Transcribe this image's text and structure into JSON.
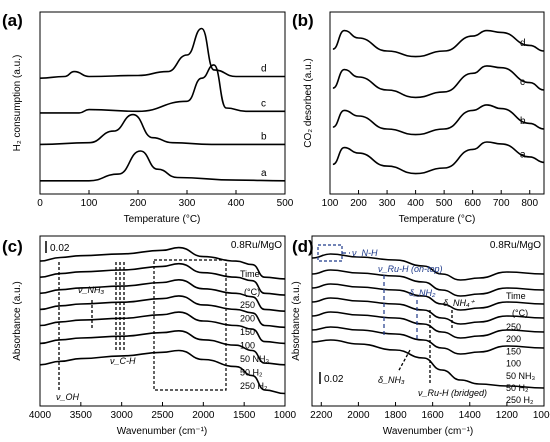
{
  "panels": [
    {
      "label": "(a)",
      "xlabel": "Temperature (°C)",
      "ylabel": "H₂ consumption (a.u.)",
      "xticks": [
        "0",
        "100",
        "200",
        "300",
        "400",
        "500"
      ],
      "curve_labels": [
        "d",
        "c",
        "b",
        "a"
      ]
    },
    {
      "label": "(b)",
      "xlabel": "Temperature (°C)",
      "ylabel": "CO₂ desorbed (a.u.)",
      "xticks": [
        "100",
        "200",
        "300",
        "400",
        "500",
        "600",
        "700",
        "800"
      ],
      "curve_labels": [
        "d",
        "c",
        "b",
        "a"
      ]
    },
    {
      "label": "(c)",
      "xlabel": "Wavenumber (cm⁻¹)",
      "ylabel": "Absorbance (a.u.)",
      "xticks": [
        "4000",
        "3500",
        "3000",
        "2500",
        "2000",
        "1500",
        "1000"
      ],
      "title": "0.8Ru/MgO",
      "scalebar": "0.02",
      "time_label": "Time",
      "unit": "(°C)",
      "series_labels": [
        "250",
        "200",
        "150",
        "100",
        "50 NH₃",
        "50 H₂",
        "250 H₂"
      ],
      "annotations": [
        "ν_NH₃",
        "ν_C-H",
        "ν_OH"
      ]
    },
    {
      "label": "(d)",
      "xlabel": "Wavenumber (cm⁻¹)",
      "ylabel": "Absorbance (a.u.)",
      "xticks": [
        "2200",
        "2000",
        "1800",
        "1600",
        "1400",
        "1200",
        "1000"
      ],
      "title": "0.8Ru/MgO",
      "scalebar": "0.02",
      "time_label": "Time",
      "unit": "(°C)",
      "series_labels": [
        "250",
        "200",
        "150",
        "100",
        "50 NH₃",
        "50 H₂",
        "250 H₂"
      ],
      "annotations": [
        "ν_N-H",
        "ν_Ru-H (on-top)",
        "δ_NH₂",
        "δ_NH₄⁺",
        "δ_NH₃",
        "ν_Ru-H (bridged)"
      ]
    }
  ],
  "chart_data": [
    {
      "type": "line",
      "title": "",
      "xlabel": "Temperature (°C)",
      "ylabel": "H₂ consumption (a.u.)",
      "xlim": [
        0,
        500
      ],
      "series": [
        {
          "name": "d",
          "x": [
            0,
            50,
            70,
            100,
            200,
            260,
            300,
            330,
            355,
            400,
            500
          ],
          "y": [
            3.2,
            3.25,
            3.4,
            3.25,
            3.28,
            3.4,
            3.9,
            4.7,
            3.45,
            3.25,
            3.25
          ]
        },
        {
          "name": "c",
          "x": [
            0,
            80,
            100,
            200,
            300,
            330,
            355,
            380,
            420,
            500
          ],
          "y": [
            2.15,
            2.15,
            2.25,
            2.2,
            2.5,
            3.2,
            3.6,
            2.3,
            2.2,
            2.2
          ]
        },
        {
          "name": "b",
          "x": [
            0,
            100,
            150,
            190,
            230,
            270,
            350,
            500
          ],
          "y": [
            1.2,
            1.25,
            1.6,
            2.1,
            1.4,
            1.25,
            1.2,
            1.2
          ]
        },
        {
          "name": "a",
          "x": [
            0,
            100,
            160,
            205,
            240,
            280,
            400,
            500
          ],
          "y": [
            0.1,
            0.1,
            0.3,
            1.0,
            0.45,
            0.2,
            0.12,
            0.1
          ]
        }
      ]
    },
    {
      "type": "line",
      "title": "",
      "xlabel": "Temperature (°C)",
      "ylabel": "CO₂ desorbed (a.u.)",
      "xlim": [
        100,
        850
      ],
      "series": [
        {
          "name": "d",
          "x": [
            110,
            150,
            200,
            300,
            400,
            500,
            600,
            650,
            700,
            800,
            850
          ],
          "y": [
            3.6,
            4.1,
            3.9,
            3.55,
            3.4,
            3.55,
            3.95,
            4.1,
            4.05,
            3.7,
            3.55
          ]
        },
        {
          "name": "c",
          "x": [
            110,
            150,
            200,
            300,
            400,
            500,
            600,
            650,
            700,
            800,
            850
          ],
          "y": [
            2.55,
            3.05,
            2.85,
            2.5,
            2.3,
            2.45,
            2.95,
            3.15,
            3.1,
            2.7,
            2.5
          ]
        },
        {
          "name": "b",
          "x": [
            110,
            150,
            200,
            300,
            400,
            500,
            600,
            650,
            700,
            800,
            850
          ],
          "y": [
            1.5,
            1.95,
            1.8,
            1.45,
            1.3,
            1.45,
            1.95,
            2.1,
            2.0,
            1.6,
            1.45
          ]
        },
        {
          "name": "a",
          "x": [
            110,
            150,
            200,
            300,
            400,
            500,
            600,
            650,
            700,
            800,
            850
          ],
          "y": [
            0.5,
            0.95,
            0.8,
            0.45,
            0.25,
            0.4,
            0.9,
            1.1,
            1.05,
            0.7,
            0.55
          ]
        }
      ]
    },
    {
      "type": "line",
      "title": "0.8Ru/MgO",
      "xlabel": "Wavenumber (cm⁻¹)",
      "ylabel": "Absorbance (a.u.)",
      "xlim": [
        4000,
        1000
      ],
      "series": [
        {
          "name": "250",
          "x": [
            4000,
            3750,
            3500,
            3000,
            2500,
            2300,
            2000,
            1600,
            1400,
            1250,
            1000
          ],
          "y": [
            7.6,
            7.8,
            7.9,
            8.0,
            8.2,
            8.35,
            7.85,
            7.6,
            7.4,
            6.7,
            6.6
          ]
        },
        {
          "name": "200",
          "x": [
            4000,
            3750,
            3500,
            3000,
            2500,
            2300,
            2000,
            1600,
            1400,
            1250,
            1000
          ],
          "y": [
            6.7,
            6.9,
            7.0,
            7.1,
            7.3,
            7.45,
            6.95,
            6.7,
            6.5,
            5.8,
            5.7
          ]
        },
        {
          "name": "150",
          "x": [
            4000,
            3750,
            3500,
            3000,
            2500,
            2300,
            2000,
            1600,
            1400,
            1250,
            1000
          ],
          "y": [
            5.8,
            6.0,
            6.1,
            6.2,
            6.4,
            6.55,
            6.05,
            5.8,
            5.6,
            4.9,
            4.8
          ]
        },
        {
          "name": "100",
          "x": [
            4000,
            3750,
            3500,
            3000,
            2500,
            2300,
            2000,
            1600,
            1400,
            1250,
            1000
          ],
          "y": [
            4.9,
            5.1,
            5.2,
            5.3,
            5.5,
            5.65,
            5.15,
            4.9,
            4.7,
            4.0,
            3.9
          ]
        },
        {
          "name": "50 NH₃",
          "x": [
            4000,
            3750,
            3500,
            3000,
            2500,
            2300,
            2000,
            1600,
            1400,
            1250,
            1000
          ],
          "y": [
            4.0,
            4.2,
            4.3,
            4.4,
            4.6,
            4.75,
            4.25,
            4.0,
            3.8,
            3.1,
            3.0
          ]
        },
        {
          "name": "50 H₂",
          "x": [
            4000,
            3750,
            3500,
            3000,
            2500,
            2300,
            2000,
            1600,
            1400,
            1250,
            1000
          ],
          "y": [
            3.0,
            3.2,
            3.3,
            3.4,
            3.6,
            3.7,
            3.2,
            2.9,
            2.6,
            1.9,
            1.8
          ]
        },
        {
          "name": "250 H₂",
          "x": [
            4000,
            3750,
            3500,
            3000,
            2500,
            2300,
            2000,
            1600,
            1400,
            1250,
            1000
          ],
          "y": [
            1.8,
            2.0,
            2.15,
            2.3,
            2.5,
            2.6,
            2.1,
            1.7,
            1.2,
            0.4,
            0.2
          ]
        }
      ]
    },
    {
      "type": "line",
      "title": "0.8Ru/MgO",
      "xlabel": "Wavenumber (cm⁻¹)",
      "ylabel": "Absorbance (a.u.)",
      "xlim": [
        2250,
        1000
      ],
      "series": [
        {
          "name": "250",
          "x": [
            2250,
            2150,
            2000,
            1800,
            1650,
            1550,
            1450,
            1350,
            1200,
            1000
          ],
          "y": [
            8.4,
            8.6,
            8.45,
            8.3,
            8.0,
            7.6,
            7.3,
            7.4,
            7.7,
            7.6
          ]
        },
        {
          "name": "200",
          "x": [
            2250,
            2150,
            2000,
            1800,
            1650,
            1550,
            1450,
            1350,
            1200,
            1000
          ],
          "y": [
            7.6,
            7.8,
            7.65,
            7.5,
            7.2,
            6.8,
            6.5,
            6.6,
            6.9,
            6.8
          ]
        },
        {
          "name": "150",
          "x": [
            2250,
            2150,
            2000,
            1800,
            1650,
            1550,
            1450,
            1350,
            1200,
            1000
          ],
          "y": [
            6.9,
            7.1,
            6.95,
            6.8,
            6.5,
            6.1,
            5.8,
            5.9,
            6.2,
            6.1
          ]
        },
        {
          "name": "100",
          "x": [
            2250,
            2150,
            2000,
            1800,
            1650,
            1550,
            1450,
            1350,
            1200,
            1000
          ],
          "y": [
            6.2,
            6.4,
            6.25,
            6.1,
            5.8,
            5.4,
            5.1,
            5.2,
            5.5,
            5.4
          ]
        },
        {
          "name": "50 NH₃",
          "x": [
            2250,
            2150,
            2000,
            1800,
            1650,
            1550,
            1450,
            1350,
            1200,
            1000
          ],
          "y": [
            5.5,
            5.7,
            5.55,
            5.4,
            5.1,
            4.7,
            4.4,
            4.5,
            4.8,
            4.7
          ]
        },
        {
          "name": "50 H₂",
          "x": [
            2250,
            2150,
            2000,
            1800,
            1650,
            1550,
            1450,
            1350,
            1200,
            1000
          ],
          "y": [
            4.8,
            4.95,
            4.8,
            4.6,
            4.3,
            3.9,
            3.6,
            3.7,
            4.0,
            3.9
          ]
        },
        {
          "name": "250 H₂",
          "x": [
            2250,
            2150,
            2000,
            1800,
            1650,
            1550,
            1450,
            1350,
            1200,
            1000
          ],
          "y": [
            4.2,
            4.3,
            4.1,
            3.8,
            3.4,
            2.8,
            2.3,
            2.1,
            2.0,
            1.9
          ]
        }
      ]
    }
  ]
}
